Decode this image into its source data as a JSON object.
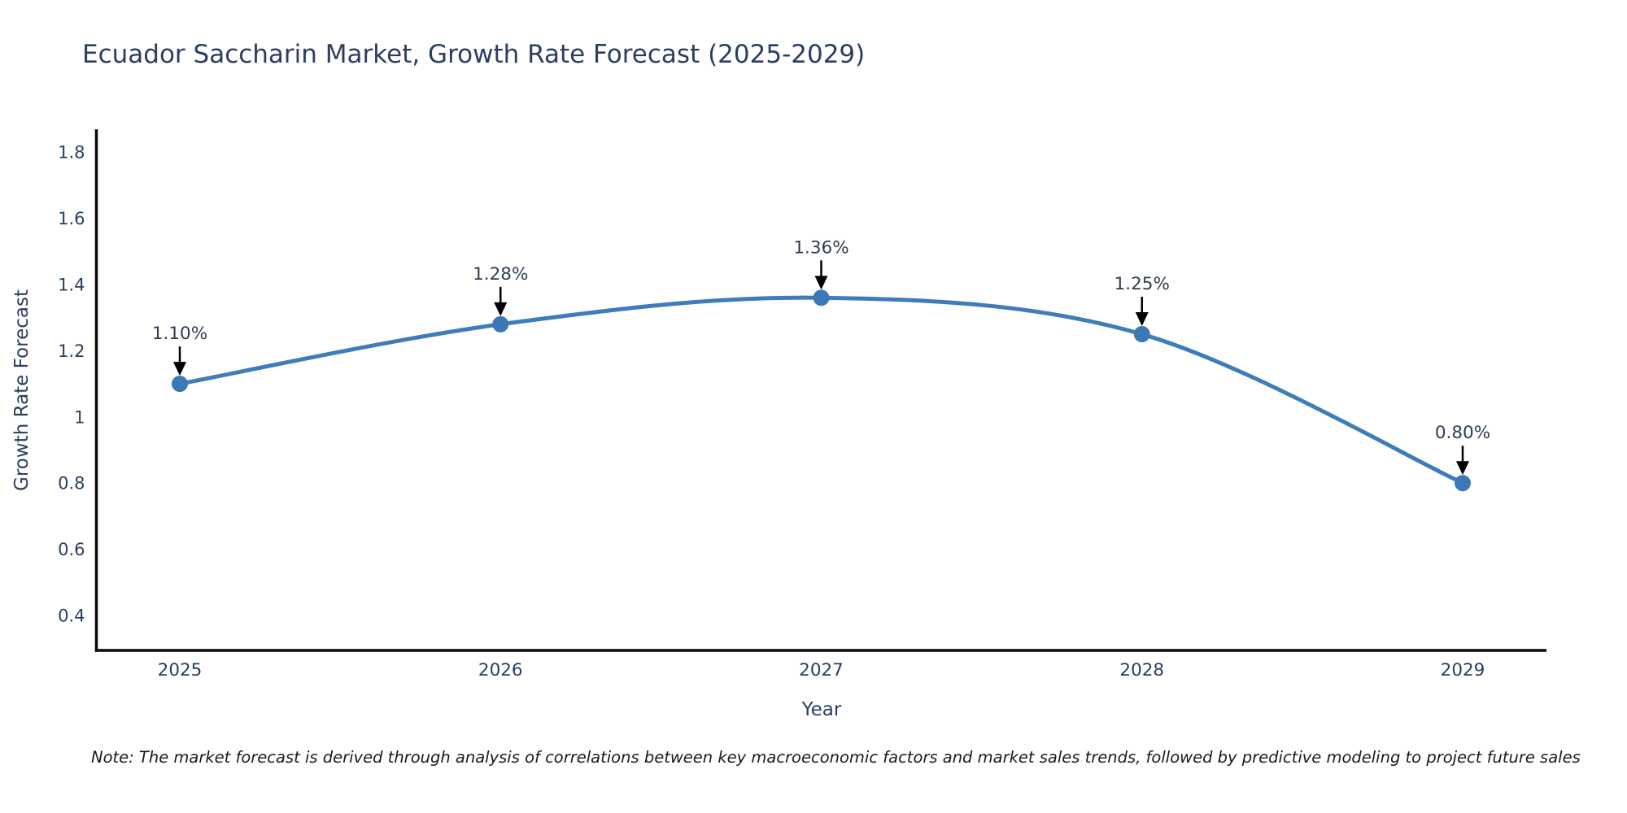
{
  "page": {
    "background_color": "#ffffff",
    "text_color": "#2a3f5f"
  },
  "chart_data": {
    "type": "line",
    "title": "Ecuador Saccharin Market, Growth Rate Forecast (2025-2029)",
    "xlabel": "Year",
    "ylabel": "Growth Rate Forecast",
    "x": [
      2025,
      2026,
      2027,
      2028,
      2029
    ],
    "series": [
      {
        "name": "Growth Rate Forecast",
        "values": [
          1.1,
          1.28,
          1.36,
          1.25,
          0.8
        ],
        "point_labels": [
          "1.10%",
          "1.28%",
          "1.36%",
          "1.25%",
          "0.80%"
        ]
      }
    ],
    "x_tick_labels": [
      "2025",
      "2026",
      "2027",
      "2028",
      "2029"
    ],
    "y_ticks": [
      0.4,
      0.6,
      0.8,
      1,
      1.2,
      1.4,
      1.6,
      1.8
    ],
    "y_tick_labels": [
      "0.4",
      "0.6",
      "0.8",
      "1",
      "1.2",
      "1.4",
      "1.6",
      "1.8"
    ],
    "ylim": [
      0.29,
      1.87
    ],
    "grid": false,
    "legend_position": "none",
    "line_shape": "spline",
    "line_color": "#3f7dba",
    "marker_color": "#3b78b5",
    "axis_color": "#0a0a0a",
    "annotation_arrow_color": "#000000",
    "annotation_text_color": "#2f3d52",
    "tick_text_color": "#2a3f5f"
  },
  "note": "Note: The market forecast is derived through analysis of correlations between key macroeconomic factors and market sales trends, followed by predictive modeling to project future sales"
}
